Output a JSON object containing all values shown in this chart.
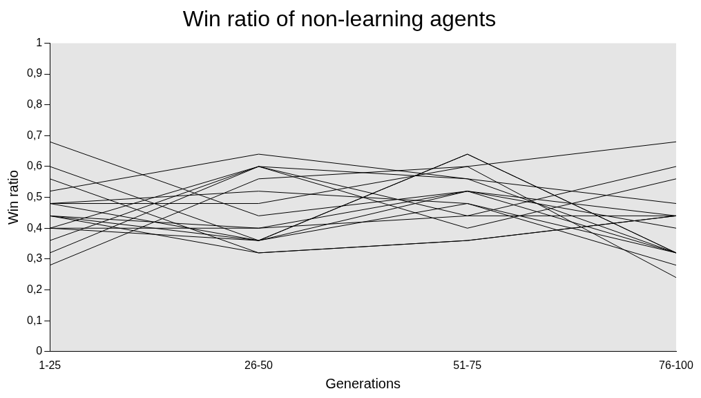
{
  "chart_data": {
    "type": "line",
    "title": "Win ratio of non-learning agents",
    "xlabel": "Generations",
    "ylabel": "Win ratio",
    "categories": [
      "1-25",
      "26-50",
      "51-75",
      "76-100"
    ],
    "ylim": [
      0,
      1
    ],
    "yticks": [
      0,
      {
        "value": 0.1,
        "label": "0,1"
      },
      {
        "value": 0.2,
        "label": "0,2"
      },
      {
        "value": 0.3,
        "label": "0,3"
      },
      {
        "value": 0.4,
        "label": "0,4"
      },
      {
        "value": 0.5,
        "label": "0,5"
      },
      {
        "value": 0.6,
        "label": "0,6"
      },
      {
        "value": 0.7,
        "label": "0,7"
      },
      {
        "value": 0.8,
        "label": "0,8"
      },
      {
        "value": 0.9,
        "label": "0,9"
      },
      1
    ],
    "grid": false,
    "legend": false,
    "marker": "none",
    "line_style": "solid",
    "series": [
      {
        "color": "#000000",
        "values": [
          0.68,
          0.44,
          0.52,
          0.32
        ]
      },
      {
        "color": "#000000",
        "values": [
          0.6,
          0.36,
          0.64,
          0.32
        ]
      },
      {
        "color": "#000000",
        "values": [
          0.56,
          0.32,
          0.36,
          0.44
        ]
      },
      {
        "color": "#000000",
        "values": [
          0.52,
          0.64,
          0.56,
          0.48
        ]
      },
      {
        "color": "#000000",
        "values": [
          0.48,
          0.52,
          0.48,
          0.32
        ]
      },
      {
        "color": "#000000",
        "values": [
          0.48,
          0.48,
          0.6,
          0.68
        ]
      },
      {
        "color": "#000000",
        "values": [
          0.48,
          0.36,
          0.52,
          0.4
        ]
      },
      {
        "color": "#000000",
        "values": [
          0.44,
          0.4,
          0.44,
          0.6
        ]
      },
      {
        "color": "#000000",
        "values": [
          0.44,
          0.36,
          0.48,
          0.28
        ]
      },
      {
        "color": "#000000",
        "values": [
          0.4,
          0.4,
          0.52,
          0.44
        ]
      },
      {
        "color": "#000000",
        "values": [
          0.4,
          0.6,
          0.4,
          0.56
        ]
      },
      {
        "color": "#000000",
        "values": [
          0.4,
          0.36,
          0.64,
          0.32
        ]
      },
      {
        "color": "#000000",
        "values": [
          0.36,
          0.6,
          0.44,
          0.44
        ]
      },
      {
        "color": "#000000",
        "values": [
          0.32,
          0.6,
          0.56,
          0.32
        ]
      },
      {
        "color": "#000000",
        "values": [
          0.28,
          0.56,
          0.6,
          0.24
        ]
      },
      {
        "color": "#000000",
        "values": [
          0.44,
          0.32,
          0.36,
          0.44
        ]
      }
    ]
  }
}
